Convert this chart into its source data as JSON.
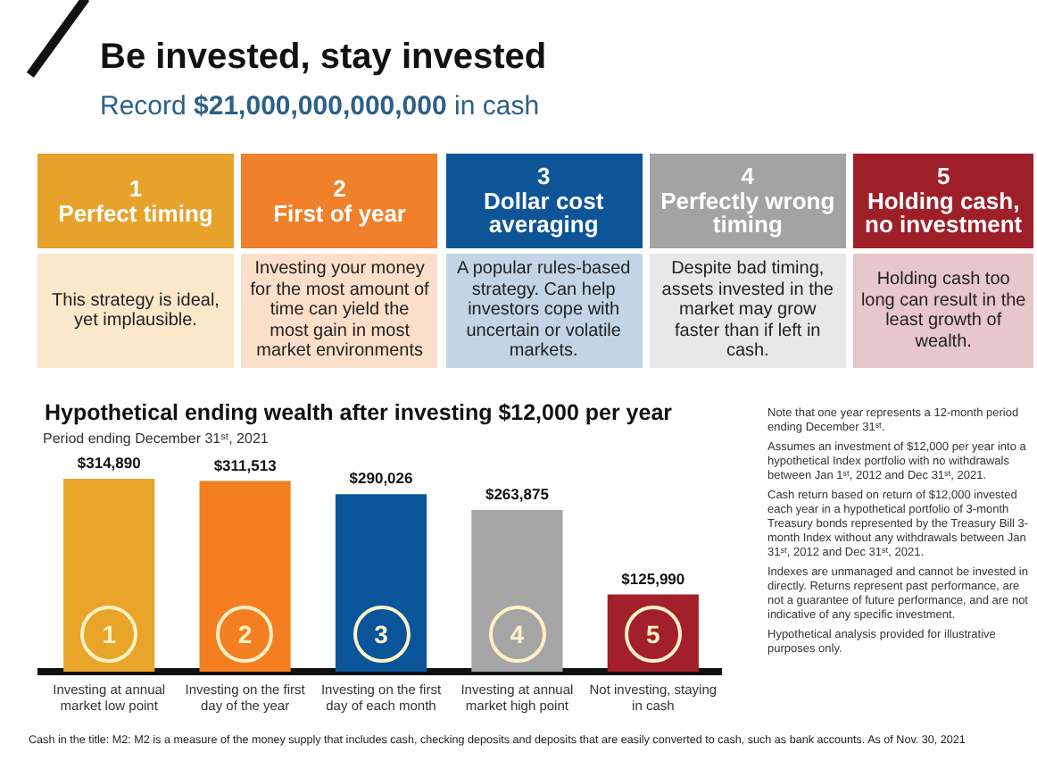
{
  "chart_data": [
    {
      "type": "other",
      "title": "Be invested, stay invested",
      "subtitle": "Record $21,000,000,000,000 in cash",
      "colors": [
        "#e6a22b",
        "#f0802a",
        "#0e5597",
        "#a3a3a3",
        "#9f1f29"
      ],
      "annotations": [
        "1",
        "Perfect timing",
        "This strategy is ideal, yet implausible.",
        "2",
        "First of year",
        "Investing your money for the most amount of time can yield the most gain in most market environments",
        "3",
        "Dollar cost averaging",
        "A popular rules-based strategy. Can help investors cope with uncertain or volatile markets.",
        "4",
        "Perfectly wrong timing",
        "Despite bad timing, assets invested in the market may grow faster than if left in cash.",
        "5",
        "Holding cash, no investment",
        "Holding cash too long can result in the least growth of wealth."
      ]
    },
    {
      "type": "bar",
      "title": "Hypothetical ending wealth after investing $12,000 per year",
      "subtitle": "Period ending December 31ˢᵗ, 2021",
      "categories": [
        "Investing at annual market low point",
        "Investing on the first day of the year",
        "Investing on the first day of each month",
        "Investing at annual market high point",
        "Not investing, staying in cash"
      ],
      "values": [
        314890,
        311513,
        290026,
        263875,
        125990
      ],
      "colors": [
        "#e8a52a",
        "#f47f20",
        "#0a5599",
        "#a5a5a5",
        "#a31f2a"
      ],
      "value_labels": [
        "$314,890",
        "$311,513",
        "$290,026",
        "$263,875",
        "$125,990"
      ],
      "tick_labels": "x",
      "annotations": [
        "Note that one year represents a 12-month period ending December 31ˢᵗ.",
        "Assumes an investment of $12,000 per year into a hypothetical Index portfolio with no withdrawals between Jan 1ˢᵗ, 2012 and Dec 31ˢᵗ, 2021.",
        "Cash return based on return of $12,000 invested each year in a hypothetical portfolio of 3-month Treasury bonds represented by the Treasury Bill 3-month Index without any withdrawals between Jan 31ˢᵗ, 2012 and Dec 31ˢᵗ, 2021.",
        "Indexes are unmanaged and cannot be invested in directly. Returns represent past performance, are not a guarantee of future performance, and are not indicative of any specific investment.",
        "Hypothetical analysis provided for illustrative purposes only.",
        {
          "text": "1",
          "x": "Investing at annual market low point"
        },
        {
          "text": "2",
          "x": "Investing on the first day of the year"
        },
        {
          "text": "3",
          "x": "Investing on the first day of each month"
        },
        {
          "text": "4",
          "x": "Investing at annual market high point"
        },
        {
          "text": "5",
          "x": "Not investing, staying in cash"
        }
      ]
    },
    {
      "type": "other",
      "annotations": [
        "Cash in the title: M2: M2 is a measure of the money supply that includes cash, checking deposits and deposits that are easily converted to cash, such as bank accounts. As of Nov. 30, 2021"
      ]
    }
  ]
}
